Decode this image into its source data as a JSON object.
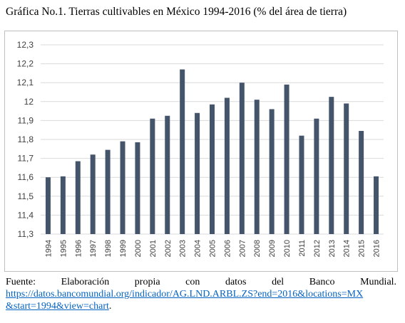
{
  "title": "Gráfica No.1. Tierras cultivables en México 1994-2016 (% del área de tierra)",
  "chart_data": {
    "type": "bar",
    "categories": [
      "1994",
      "1995",
      "1996",
      "1997",
      "1998",
      "1999",
      "2000",
      "2001",
      "2002",
      "2003",
      "2004",
      "2005",
      "2006",
      "2007",
      "2008",
      "2009",
      "2010",
      "2011",
      "2012",
      "2013",
      "2014",
      "2015",
      "2016"
    ],
    "values": [
      11.6,
      11.605,
      11.685,
      11.72,
      11.745,
      11.79,
      11.785,
      11.91,
      11.925,
      12.17,
      11.94,
      11.985,
      12.02,
      12.1,
      12.01,
      11.96,
      12.09,
      11.82,
      11.91,
      12.025,
      11.99,
      11.845,
      11.605
    ],
    "yticks": [
      "12,3",
      "12,2",
      "12,1",
      "12",
      "11,9",
      "11,8",
      "11,7",
      "11,6",
      "11,5",
      "11,4",
      "11,3"
    ],
    "ylim": [
      11.3,
      12.3
    ],
    "grid": true,
    "bar_color": "#44546a",
    "grid_color": "#d9d9d9"
  },
  "source": {
    "words": [
      "Fuente:",
      "Elaboración",
      "propia",
      "con",
      "datos",
      "del",
      "Banco",
      "Mundial."
    ],
    "link_line1": "https://datos.bancomundial.org/indicador/AG.LND.ARBL.ZS?end=2016&locations=MX",
    "link_line2": "&start=1994&view=chart",
    "trailing": "."
  }
}
